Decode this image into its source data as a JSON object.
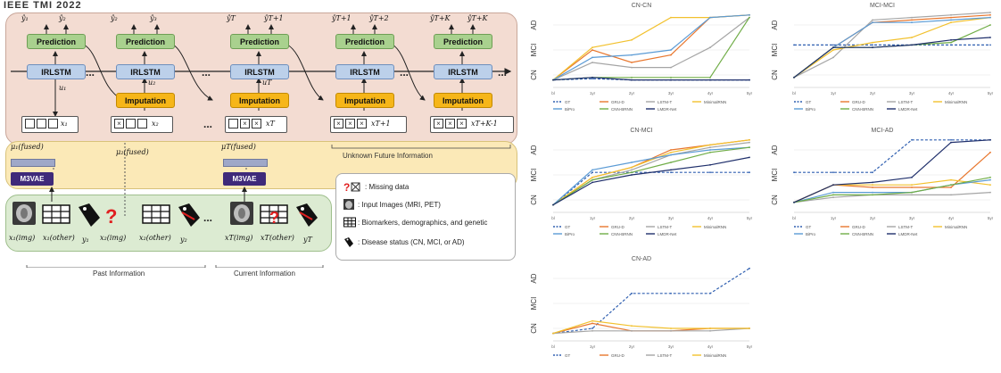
{
  "header": {
    "text": "IEEE TMI 2022"
  },
  "diagram": {
    "prediction_label": "Prediction",
    "irlstm_label": "IRLSTM",
    "imputation_label": "Imputation",
    "mvae_label": "M3VAE",
    "columns": [
      {
        "yhat_a": "ŷ₁",
        "yhat_b": "ŷ₂",
        "u": "u₁",
        "x": "x₁"
      },
      {
        "yhat_a": "ŷ₂",
        "yhat_b": "ŷ₃",
        "u": "u₂",
        "x": "x₂"
      },
      {
        "yhat_a": "ŷT",
        "yhat_b": "ŷT+1",
        "u": "uT",
        "x": "xT"
      },
      {
        "yhat_a": "ŷT+1",
        "yhat_b": "ŷT+2",
        "u": "",
        "x": "xT+1"
      },
      {
        "yhat_a": "ŷT+K",
        "yhat_b": "ŷT+K",
        "u": "",
        "x": "xT+K-1"
      }
    ],
    "mu_labels": [
      "μ₁(fused)",
      "μ₂(fused)",
      "μT(fused)"
    ],
    "bottom_labels": [
      "x₁(img)",
      "x₁(other)",
      "y₁",
      "x₂(img)",
      "x₂(other)",
      "y₂",
      "xT(img)",
      "xT(other)",
      "yT"
    ],
    "missing_glyph": "?",
    "ellipsis": "...",
    "unknown_future": "Unknown Future Information",
    "past_info": "Past Information",
    "current_info": "Current Information"
  },
  "legend": {
    "items": [
      {
        "icon": "missing-data-icon",
        "text": ": Missing data"
      },
      {
        "icon": "brain-image-icon",
        "text": ": Input Images (MRI, PET)"
      },
      {
        "icon": "grid-table-icon",
        "text": ": Biomarkers, demographics, and genetic"
      },
      {
        "icon": "tag-icon",
        "text": ": Disease status (CN, MCI, or AD)"
      }
    ]
  },
  "chart_legend": [
    "GT",
    "GRU-D",
    "LSTM-T",
    "MinimalRNN",
    "BiPro",
    "CNN-BRNN",
    "LMDR-Net"
  ],
  "chart_data": [
    {
      "type": "line",
      "title": "CN-CN",
      "categories": [
        "bl",
        "1yr",
        "2yr",
        "3yr",
        "4yr",
        "5yr"
      ],
      "yticks": [
        "CN",
        "MCI",
        "AD"
      ],
      "ylim": [
        0,
        3
      ],
      "series": [
        {
          "name": "GT",
          "color": "#2f5fb0",
          "dashed": true,
          "values": [
            0.3,
            0.35,
            0.3,
            0.3,
            0.3,
            0.3
          ]
        },
        {
          "name": "GRU-D",
          "color": "#e8772e",
          "values": [
            0.3,
            1.5,
            1.0,
            1.3,
            2.8,
            2.9
          ]
        },
        {
          "name": "LSTM-T",
          "color": "#a5a5a5",
          "values": [
            0.3,
            1.0,
            0.8,
            0.8,
            1.6,
            2.8
          ]
        },
        {
          "name": "MinimalRNN",
          "color": "#f2c12e",
          "values": [
            0.3,
            1.6,
            1.9,
            2.8,
            2.8,
            2.9
          ]
        },
        {
          "name": "BiPro",
          "color": "#5b9bd5",
          "values": [
            0.3,
            1.2,
            1.3,
            1.5,
            2.8,
            2.9
          ]
        },
        {
          "name": "CNN-BRNN",
          "color": "#70ad47",
          "values": [
            0.3,
            0.4,
            0.4,
            0.4,
            0.4,
            2.8
          ]
        },
        {
          "name": "LMDR-Net",
          "color": "#1f2f6b",
          "values": [
            0.3,
            0.4,
            0.3,
            0.3,
            0.3,
            0.3
          ]
        }
      ]
    },
    {
      "type": "line",
      "title": "MCI-MCI",
      "categories": [
        "bl",
        "1yr",
        "2yr",
        "3yr",
        "4yr",
        "5yr"
      ],
      "yticks": [
        "CN",
        "MCI",
        "AD"
      ],
      "ylim": [
        0,
        3
      ],
      "series": [
        {
          "name": "GT",
          "color": "#2f5fb0",
          "dashed": true,
          "values": [
            1.7,
            1.7,
            1.7,
            1.7,
            1.7,
            1.7
          ]
        },
        {
          "name": "GRU-D",
          "color": "#e8772e",
          "values": [
            0.4,
            1.6,
            2.6,
            2.7,
            2.8,
            2.9
          ]
        },
        {
          "name": "LSTM-T",
          "color": "#a5a5a5",
          "values": [
            0.4,
            1.2,
            2.7,
            2.8,
            2.9,
            3.0
          ]
        },
        {
          "name": "MinimalRNN",
          "color": "#f2c12e",
          "values": [
            0.4,
            1.5,
            1.8,
            2.0,
            2.6,
            2.8
          ]
        },
        {
          "name": "BiPro",
          "color": "#5b9bd5",
          "values": [
            0.4,
            1.6,
            2.6,
            2.6,
            2.7,
            2.8
          ]
        },
        {
          "name": "CNN-BRNN",
          "color": "#70ad47",
          "values": [
            0.4,
            1.6,
            1.6,
            1.7,
            1.8,
            2.5
          ]
        },
        {
          "name": "LMDR-Net",
          "color": "#1f2f6b",
          "values": [
            0.4,
            1.6,
            1.6,
            1.7,
            1.9,
            2.0
          ]
        }
      ]
    },
    {
      "type": "line",
      "title": "CN-MCI",
      "categories": [
        "bl",
        "1yr",
        "2yr",
        "3yr",
        "4yr",
        "5yr"
      ],
      "yticks": [
        "CN",
        "MCI",
        "AD"
      ],
      "ylim": [
        0,
        3
      ],
      "series": [
        {
          "name": "GT",
          "color": "#2f5fb0",
          "dashed": true,
          "values": [
            0.3,
            1.6,
            1.6,
            1.6,
            1.6,
            1.6
          ]
        },
        {
          "name": "GRU-D",
          "color": "#e8772e",
          "values": [
            0.3,
            1.4,
            1.8,
            2.5,
            2.7,
            2.9
          ]
        },
        {
          "name": "LSTM-T",
          "color": "#a5a5a5",
          "values": [
            0.3,
            1.3,
            1.7,
            2.3,
            2.6,
            2.8
          ]
        },
        {
          "name": "MinimalRNN",
          "color": "#f2c12e",
          "values": [
            0.3,
            1.4,
            1.8,
            2.4,
            2.7,
            2.9
          ]
        },
        {
          "name": "BiPro",
          "color": "#5b9bd5",
          "values": [
            0.3,
            1.7,
            2.0,
            2.3,
            2.5,
            2.6
          ]
        },
        {
          "name": "CNN-BRNN",
          "color": "#70ad47",
          "values": [
            0.3,
            1.3,
            1.6,
            2.0,
            2.4,
            2.6
          ]
        },
        {
          "name": "LMDR-Net",
          "color": "#1f2f6b",
          "values": [
            0.3,
            1.2,
            1.5,
            1.7,
            1.9,
            2.2
          ]
        }
      ]
    },
    {
      "type": "line",
      "title": "MCI-AD",
      "categories": [
        "bl",
        "1yr",
        "2yr",
        "3yr",
        "4yr",
        "5yr"
      ],
      "yticks": [
        "CN",
        "MCI",
        "AD"
      ],
      "ylim": [
        0,
        3
      ],
      "series": [
        {
          "name": "GT",
          "color": "#2f5fb0",
          "dashed": true,
          "values": [
            1.6,
            1.6,
            1.6,
            2.9,
            2.9,
            2.9
          ]
        },
        {
          "name": "GRU-D",
          "color": "#e8772e",
          "values": [
            0.4,
            1.1,
            1.0,
            1.0,
            1.0,
            2.4
          ]
        },
        {
          "name": "LSTM-T",
          "color": "#a5a5a5",
          "values": [
            0.4,
            0.6,
            0.7,
            0.7,
            0.7,
            0.8
          ]
        },
        {
          "name": "MinimalRNN",
          "color": "#f2c12e",
          "values": [
            0.4,
            1.1,
            1.1,
            1.1,
            1.3,
            1.1
          ]
        },
        {
          "name": "BiPro",
          "color": "#5b9bd5",
          "values": [
            0.4,
            0.8,
            0.8,
            0.8,
            1.1,
            1.3
          ]
        },
        {
          "name": "CNN-BRNN",
          "color": "#70ad47",
          "values": [
            0.4,
            0.7,
            0.7,
            0.8,
            1.1,
            1.4
          ]
        },
        {
          "name": "LMDR-Net",
          "color": "#1f2f6b",
          "values": [
            0.4,
            1.1,
            1.2,
            1.4,
            2.8,
            2.9
          ]
        }
      ]
    },
    {
      "type": "line",
      "title": "CN-AD",
      "categories": [
        "bl",
        "1yr",
        "2yr",
        "3yr",
        "4yr",
        "5yr"
      ],
      "yticks": [
        "CN",
        "MCI",
        "AD"
      ],
      "ylim": [
        0,
        3
      ],
      "series": [
        {
          "name": "GT",
          "color": "#2f5fb0",
          "dashed": true,
          "values": [
            0.3,
            0.5,
            1.9,
            1.9,
            1.9,
            2.9
          ]
        },
        {
          "name": "GRU-D",
          "color": "#e8772e",
          "values": [
            0.3,
            0.7,
            0.4,
            0.4,
            0.5,
            0.5
          ]
        },
        {
          "name": "LSTM-T",
          "color": "#a5a5a5",
          "values": [
            0.3,
            0.4,
            0.4,
            0.4,
            0.4,
            0.5
          ]
        },
        {
          "name": "MinimalRNN",
          "color": "#f2c12e",
          "values": [
            0.3,
            0.8,
            0.6,
            0.5,
            0.5,
            0.5
          ]
        }
      ]
    }
  ]
}
